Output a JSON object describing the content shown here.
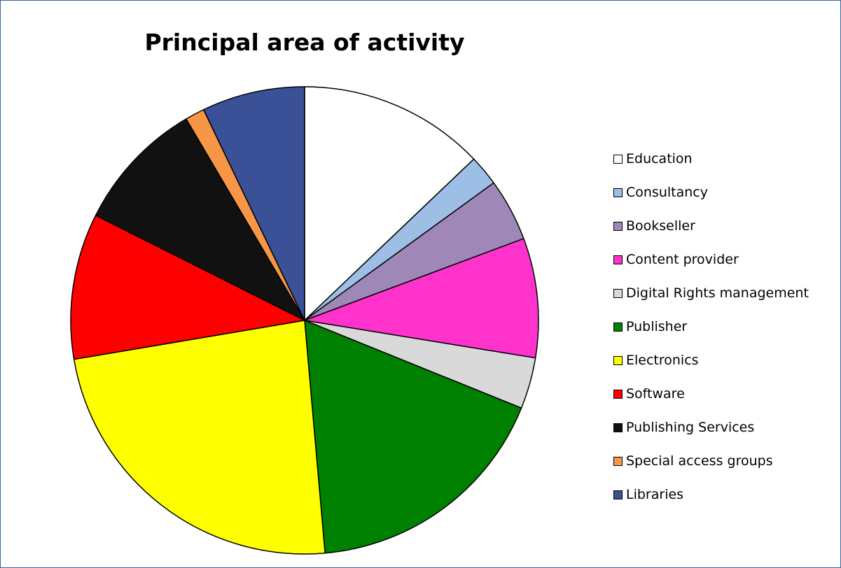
{
  "chart_data": {
    "type": "pie",
    "title": "Principal area of activity",
    "start": "12 o'clock, clockwise",
    "legend_position": "right",
    "slices": [
      {
        "label": "Education",
        "value": 13.4,
        "color": "#ffffff"
      },
      {
        "label": "Consultancy",
        "value": 2.2,
        "color": "#9dbfe6"
      },
      {
        "label": "Bookseller",
        "value": 4.5,
        "color": "#9f88b7"
      },
      {
        "label": "Content provider",
        "value": 8.6,
        "color": "#ff33cc"
      },
      {
        "label": "Digital Rights management",
        "value": 3.7,
        "color": "#d9d9d9"
      },
      {
        "label": "Publisher",
        "value": 18.2,
        "color": "#008000"
      },
      {
        "label": "Electronics",
        "value": 24.7,
        "color": "#ffff00"
      },
      {
        "label": "Software",
        "value": 10.5,
        "color": "#ff0000"
      },
      {
        "label": "Publishing Services",
        "value": 9.5,
        "color": "#111111"
      },
      {
        "label": "Special access groups",
        "value": 1.4,
        "color": "#f79646"
      },
      {
        "label": "Libraries",
        "value": 7.4,
        "color": "#3a5198"
      }
    ]
  }
}
